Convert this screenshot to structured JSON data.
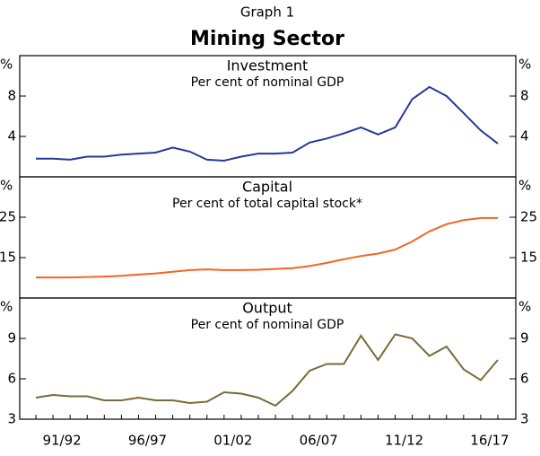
{
  "header": {
    "kicker": "Graph 1",
    "title": "Mining Sector"
  },
  "chart_data": [
    {
      "type": "line",
      "title": "Investment",
      "subtitle": "Per cent of nominal GDP",
      "y_unit": "%",
      "color": "#26389a",
      "ylim": [
        0,
        12
      ],
      "yticks": [
        4,
        8
      ],
      "values": [
        1.8,
        1.8,
        1.7,
        2.0,
        2.0,
        2.2,
        2.3,
        2.4,
        2.9,
        2.5,
        1.7,
        1.6,
        2.0,
        2.3,
        2.3,
        2.4,
        3.4,
        3.8,
        4.3,
        4.9,
        4.2,
        4.9,
        7.7,
        8.9,
        8.0,
        6.3,
        4.6,
        3.3
      ]
    },
    {
      "type": "line",
      "title": "Capital",
      "subtitle": "Per cent of total capital stock*",
      "y_unit": "%",
      "color": "#f26522",
      "ylim": [
        5,
        35
      ],
      "yticks": [
        15,
        25
      ],
      "values": [
        10.1,
        10.1,
        10.1,
        10.2,
        10.3,
        10.5,
        10.8,
        11.1,
        11.5,
        11.9,
        12.1,
        11.9,
        11.9,
        12.0,
        12.2,
        12.4,
        12.9,
        13.7,
        14.6,
        15.4,
        16.0,
        17.0,
        19.0,
        21.5,
        23.3,
        24.3,
        24.8,
        24.8
      ]
    },
    {
      "type": "line",
      "title": "Output",
      "subtitle": "Per cent of nominal GDP",
      "y_unit": "%",
      "color": "#7a6a3a",
      "ylim": [
        3,
        12
      ],
      "yticks": [
        3,
        6,
        9
      ],
      "categories": [
        null,
        "91/92",
        null,
        null,
        null,
        null,
        "96/97",
        null,
        null,
        null,
        null,
        "01/02",
        null,
        null,
        null,
        null,
        "06/07",
        null,
        null,
        null,
        null,
        "11/12",
        null,
        null,
        null,
        null,
        "16/17",
        null
      ],
      "values": [
        4.6,
        4.8,
        4.7,
        4.7,
        4.4,
        4.4,
        4.6,
        4.4,
        4.4,
        4.2,
        4.3,
        5.0,
        4.9,
        4.6,
        4.0,
        5.1,
        6.6,
        7.1,
        7.1,
        9.2,
        7.4,
        9.3,
        9.0,
        7.7,
        8.4,
        6.7,
        5.9,
        7.4
      ]
    }
  ]
}
